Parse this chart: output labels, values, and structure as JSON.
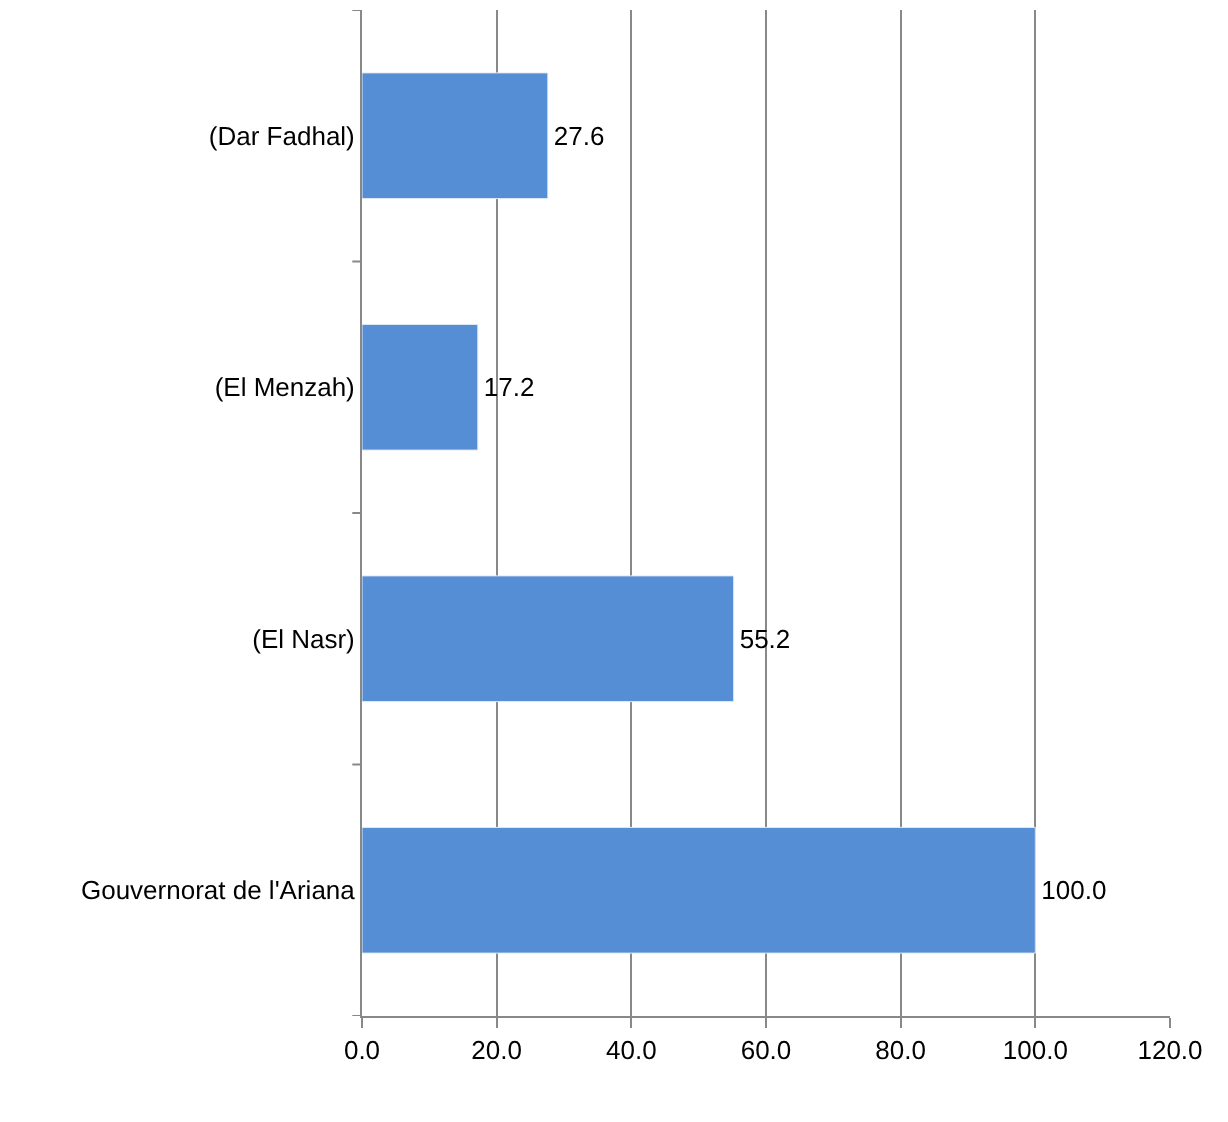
{
  "chart_data": {
    "type": "bar",
    "orientation": "horizontal",
    "categories": [
      "(Dar Fadhal)",
      "(El Menzah)",
      "(El Nasr)",
      "Gouvernorat de l'Ariana"
    ],
    "values": [
      27.6,
      17.2,
      55.2,
      100.0
    ],
    "value_labels": [
      "27.6",
      "17.2",
      "55.2",
      "100.0"
    ],
    "color": "#558ed5",
    "xlim": [
      0,
      120
    ],
    "xticks": [
      {
        "value": 0,
        "label": "0.0"
      },
      {
        "value": 20,
        "label": "20.0"
      },
      {
        "value": 40,
        "label": "40.0"
      },
      {
        "value": 60,
        "label": "60.0"
      },
      {
        "value": 80,
        "label": "80.0"
      },
      {
        "value": 100,
        "label": "100.0"
      },
      {
        "value": 120,
        "label": "120.0"
      }
    ],
    "grid": "x"
  }
}
